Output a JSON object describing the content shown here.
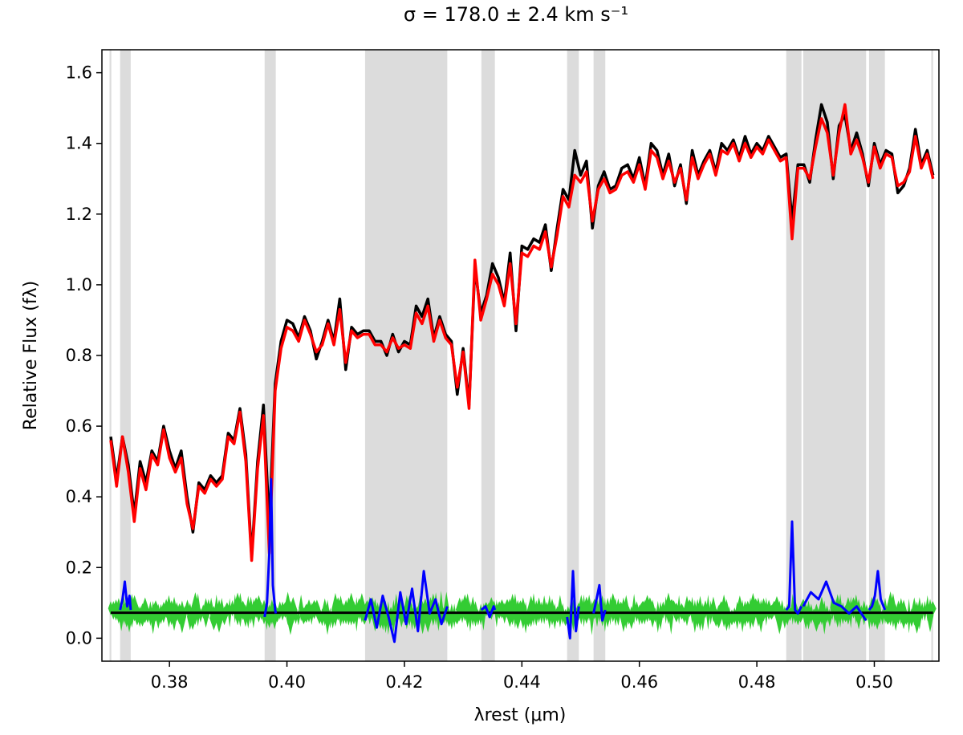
{
  "chart_data": {
    "type": "line",
    "title": "σ = 178.0 ± 2.4 km s⁻¹",
    "xlabel": "λrest (μm)",
    "ylabel": "Relative Flux (fλ)",
    "xlim": [
      0.3685,
      0.511
    ],
    "ylim": [
      -0.065,
      1.665
    ],
    "xticks": [
      0.38,
      0.4,
      0.42,
      0.44,
      0.46,
      0.48,
      0.5
    ],
    "xtick_labels": [
      "0.38",
      "0.40",
      "0.42",
      "0.44",
      "0.46",
      "0.48",
      "0.50"
    ],
    "yticks": [
      0.0,
      0.2,
      0.4,
      0.6,
      0.8,
      1.0,
      1.2,
      1.4,
      1.6
    ],
    "ytick_labels": [
      "0.0",
      "0.2",
      "0.4",
      "0.6",
      "0.8",
      "1.0",
      "1.2",
      "1.4",
      "1.6"
    ],
    "masked_regions": [
      [
        0.3698,
        0.3701
      ],
      [
        0.3716,
        0.3734
      ],
      [
        0.3962,
        0.3981
      ],
      [
        0.4133,
        0.4273
      ],
      [
        0.4331,
        0.4354
      ],
      [
        0.4477,
        0.4497
      ],
      [
        0.4522,
        0.4542
      ],
      [
        0.485,
        0.4876
      ],
      [
        0.4879,
        0.4986
      ],
      [
        0.4991,
        0.5018
      ],
      [
        0.5097,
        0.51
      ]
    ],
    "noise_level": 0.072,
    "series": [
      {
        "color": "#000000",
        "x": [
          0.37,
          0.371,
          0.372,
          0.373,
          0.374,
          0.375,
          0.376,
          0.377,
          0.378,
          0.379,
          0.38,
          0.381,
          0.382,
          0.383,
          0.384,
          0.385,
          0.386,
          0.387,
          0.388,
          0.389,
          0.39,
          0.391,
          0.392,
          0.393,
          0.394,
          0.395,
          0.396,
          0.397,
          0.398,
          0.399,
          0.4,
          0.401,
          0.402,
          0.403,
          0.404,
          0.405,
          0.406,
          0.407,
          0.408,
          0.409,
          0.41,
          0.411,
          0.412,
          0.413,
          0.414,
          0.415,
          0.416,
          0.417,
          0.418,
          0.419,
          0.42,
          0.421,
          0.422,
          0.423,
          0.424,
          0.425,
          0.426,
          0.427,
          0.428,
          0.429,
          0.43,
          0.431,
          0.432,
          0.433,
          0.434,
          0.435,
          0.436,
          0.437,
          0.438,
          0.439,
          0.44,
          0.441,
          0.442,
          0.443,
          0.444,
          0.445,
          0.446,
          0.447,
          0.448,
          0.449,
          0.45,
          0.451,
          0.452,
          0.453,
          0.454,
          0.455,
          0.456,
          0.457,
          0.458,
          0.459,
          0.46,
          0.461,
          0.462,
          0.463,
          0.464,
          0.465,
          0.466,
          0.467,
          0.468,
          0.469,
          0.47,
          0.471,
          0.472,
          0.473,
          0.474,
          0.475,
          0.476,
          0.477,
          0.478,
          0.479,
          0.48,
          0.481,
          0.482,
          0.483,
          0.484,
          0.485,
          0.486,
          0.487,
          0.488,
          0.489,
          0.49,
          0.491,
          0.492,
          0.493,
          0.494,
          0.495,
          0.496,
          0.497,
          0.498,
          0.499,
          0.5,
          0.501,
          0.502,
          0.503,
          0.504,
          0.505,
          0.506,
          0.507,
          0.508,
          0.509,
          0.51
        ],
        "y": [
          0.57,
          0.45,
          0.57,
          0.49,
          0.35,
          0.5,
          0.44,
          0.53,
          0.5,
          0.6,
          0.53,
          0.48,
          0.53,
          0.4,
          0.3,
          0.44,
          0.42,
          0.46,
          0.44,
          0.46,
          0.58,
          0.56,
          0.65,
          0.52,
          0.23,
          0.5,
          0.66,
          0.32,
          0.72,
          0.84,
          0.9,
          0.89,
          0.85,
          0.91,
          0.87,
          0.79,
          0.84,
          0.9,
          0.84,
          0.96,
          0.76,
          0.88,
          0.86,
          0.87,
          0.87,
          0.84,
          0.84,
          0.8,
          0.86,
          0.81,
          0.84,
          0.83,
          0.94,
          0.91,
          0.96,
          0.85,
          0.91,
          0.86,
          0.84,
          0.69,
          0.82,
          0.66,
          1.05,
          0.92,
          0.97,
          1.06,
          1.02,
          0.95,
          1.09,
          0.87,
          1.11,
          1.1,
          1.13,
          1.12,
          1.17,
          1.04,
          1.16,
          1.27,
          1.24,
          1.38,
          1.31,
          1.35,
          1.16,
          1.28,
          1.32,
          1.27,
          1.28,
          1.33,
          1.34,
          1.3,
          1.36,
          1.28,
          1.4,
          1.38,
          1.31,
          1.37,
          1.28,
          1.34,
          1.23,
          1.38,
          1.31,
          1.35,
          1.38,
          1.32,
          1.4,
          1.38,
          1.41,
          1.36,
          1.42,
          1.37,
          1.4,
          1.38,
          1.42,
          1.39,
          1.36,
          1.37,
          1.18,
          1.34,
          1.34,
          1.29,
          1.41,
          1.51,
          1.46,
          1.3,
          1.45,
          1.48,
          1.38,
          1.43,
          1.37,
          1.28,
          1.4,
          1.34,
          1.38,
          1.37,
          1.26,
          1.28,
          1.33,
          1.44,
          1.34,
          1.38,
          1.31
        ]
      },
      {
        "color": "#ff0000",
        "x": [
          0.37,
          0.371,
          0.372,
          0.373,
          0.374,
          0.375,
          0.376,
          0.377,
          0.378,
          0.379,
          0.38,
          0.381,
          0.382,
          0.383,
          0.384,
          0.385,
          0.386,
          0.387,
          0.388,
          0.389,
          0.39,
          0.391,
          0.392,
          0.393,
          0.394,
          0.395,
          0.396,
          0.397,
          0.398,
          0.399,
          0.4,
          0.401,
          0.402,
          0.403,
          0.404,
          0.405,
          0.406,
          0.407,
          0.408,
          0.409,
          0.41,
          0.411,
          0.412,
          0.413,
          0.414,
          0.415,
          0.416,
          0.417,
          0.418,
          0.419,
          0.42,
          0.421,
          0.422,
          0.423,
          0.424,
          0.425,
          0.426,
          0.427,
          0.428,
          0.429,
          0.43,
          0.431,
          0.432,
          0.433,
          0.434,
          0.435,
          0.436,
          0.437,
          0.438,
          0.439,
          0.44,
          0.441,
          0.442,
          0.443,
          0.444,
          0.445,
          0.446,
          0.447,
          0.448,
          0.449,
          0.45,
          0.451,
          0.452,
          0.453,
          0.454,
          0.455,
          0.456,
          0.457,
          0.458,
          0.459,
          0.46,
          0.461,
          0.462,
          0.463,
          0.464,
          0.465,
          0.466,
          0.467,
          0.468,
          0.469,
          0.47,
          0.471,
          0.472,
          0.473,
          0.474,
          0.475,
          0.476,
          0.477,
          0.478,
          0.479,
          0.48,
          0.481,
          0.482,
          0.483,
          0.484,
          0.485,
          0.486,
          0.487,
          0.488,
          0.489,
          0.49,
          0.491,
          0.492,
          0.493,
          0.494,
          0.495,
          0.496,
          0.497,
          0.498,
          0.499,
          0.5,
          0.501,
          0.502,
          0.503,
          0.504,
          0.505,
          0.506,
          0.507,
          0.508,
          0.509,
          0.51
        ],
        "y": [
          0.56,
          0.43,
          0.57,
          0.47,
          0.33,
          0.48,
          0.42,
          0.52,
          0.49,
          0.59,
          0.51,
          0.47,
          0.51,
          0.38,
          0.31,
          0.43,
          0.41,
          0.45,
          0.43,
          0.45,
          0.57,
          0.55,
          0.64,
          0.5,
          0.22,
          0.48,
          0.63,
          0.24,
          0.7,
          0.82,
          0.88,
          0.87,
          0.84,
          0.9,
          0.86,
          0.81,
          0.83,
          0.89,
          0.83,
          0.93,
          0.78,
          0.87,
          0.85,
          0.86,
          0.86,
          0.83,
          0.83,
          0.81,
          0.85,
          0.82,
          0.83,
          0.82,
          0.92,
          0.89,
          0.94,
          0.84,
          0.9,
          0.85,
          0.83,
          0.71,
          0.81,
          0.65,
          1.07,
          0.9,
          0.96,
          1.03,
          1.0,
          0.94,
          1.06,
          0.89,
          1.09,
          1.08,
          1.11,
          1.1,
          1.15,
          1.05,
          1.14,
          1.25,
          1.22,
          1.31,
          1.29,
          1.32,
          1.18,
          1.27,
          1.3,
          1.26,
          1.27,
          1.31,
          1.32,
          1.29,
          1.34,
          1.27,
          1.38,
          1.36,
          1.3,
          1.35,
          1.29,
          1.33,
          1.24,
          1.36,
          1.3,
          1.34,
          1.37,
          1.31,
          1.38,
          1.37,
          1.4,
          1.35,
          1.4,
          1.36,
          1.39,
          1.37,
          1.41,
          1.38,
          1.35,
          1.36,
          1.13,
          1.33,
          1.33,
          1.3,
          1.39,
          1.47,
          1.43,
          1.31,
          1.43,
          1.51,
          1.37,
          1.41,
          1.36,
          1.29,
          1.39,
          1.33,
          1.37,
          1.36,
          1.28,
          1.29,
          1.32,
          1.42,
          1.33,
          1.37,
          1.3
        ]
      }
    ],
    "residual_segments": [
      {
        "x": [
          0.3716,
          0.372,
          0.3724,
          0.3728,
          0.3732,
          0.3734
        ],
        "y": [
          0.08,
          0.11,
          0.16,
          0.09,
          0.12,
          0.08
        ]
      },
      {
        "x": [
          0.3962,
          0.3966,
          0.397,
          0.3973,
          0.3976,
          0.398,
          0.3981
        ],
        "y": [
          0.06,
          0.1,
          0.24,
          0.45,
          0.15,
          0.08,
          0.07
        ]
      },
      {
        "x": [
          0.4133,
          0.4143,
          0.4153,
          0.4163,
          0.4173,
          0.4183,
          0.4193,
          0.4203,
          0.4213,
          0.4223,
          0.4233,
          0.4243,
          0.4253,
          0.4263,
          0.4273
        ],
        "y": [
          0.05,
          0.11,
          0.03,
          0.12,
          0.06,
          -0.01,
          0.13,
          0.04,
          0.14,
          0.02,
          0.19,
          0.07,
          0.11,
          0.04,
          0.09
        ]
      },
      {
        "x": [
          0.4331,
          0.4338,
          0.4345,
          0.4352,
          0.4354
        ],
        "y": [
          0.08,
          0.09,
          0.06,
          0.09,
          0.08
        ]
      },
      {
        "x": [
          0.4477,
          0.4482,
          0.4487,
          0.4492,
          0.4497
        ],
        "y": [
          0.06,
          0.0,
          0.19,
          0.02,
          0.09
        ]
      },
      {
        "x": [
          0.4522,
          0.4527,
          0.4532,
          0.4537,
          0.4542
        ],
        "y": [
          0.07,
          0.11,
          0.15,
          0.05,
          0.08
        ]
      },
      {
        "x": [
          0.485,
          0.4855,
          0.486,
          0.4865,
          0.487,
          0.4876
        ],
        "y": [
          0.08,
          0.09,
          0.33,
          0.08,
          0.07,
          0.09
        ]
      },
      {
        "x": [
          0.4879,
          0.4892,
          0.4905,
          0.4918,
          0.4931,
          0.4944,
          0.4957,
          0.497,
          0.4986
        ],
        "y": [
          0.09,
          0.13,
          0.11,
          0.16,
          0.1,
          0.09,
          0.07,
          0.09,
          0.05
        ]
      },
      {
        "x": [
          0.4991,
          0.4996,
          0.5001,
          0.5006,
          0.5011,
          0.5018
        ],
        "y": [
          0.08,
          0.09,
          0.12,
          0.19,
          0.11,
          0.08
        ]
      }
    ],
    "grid": false
  }
}
